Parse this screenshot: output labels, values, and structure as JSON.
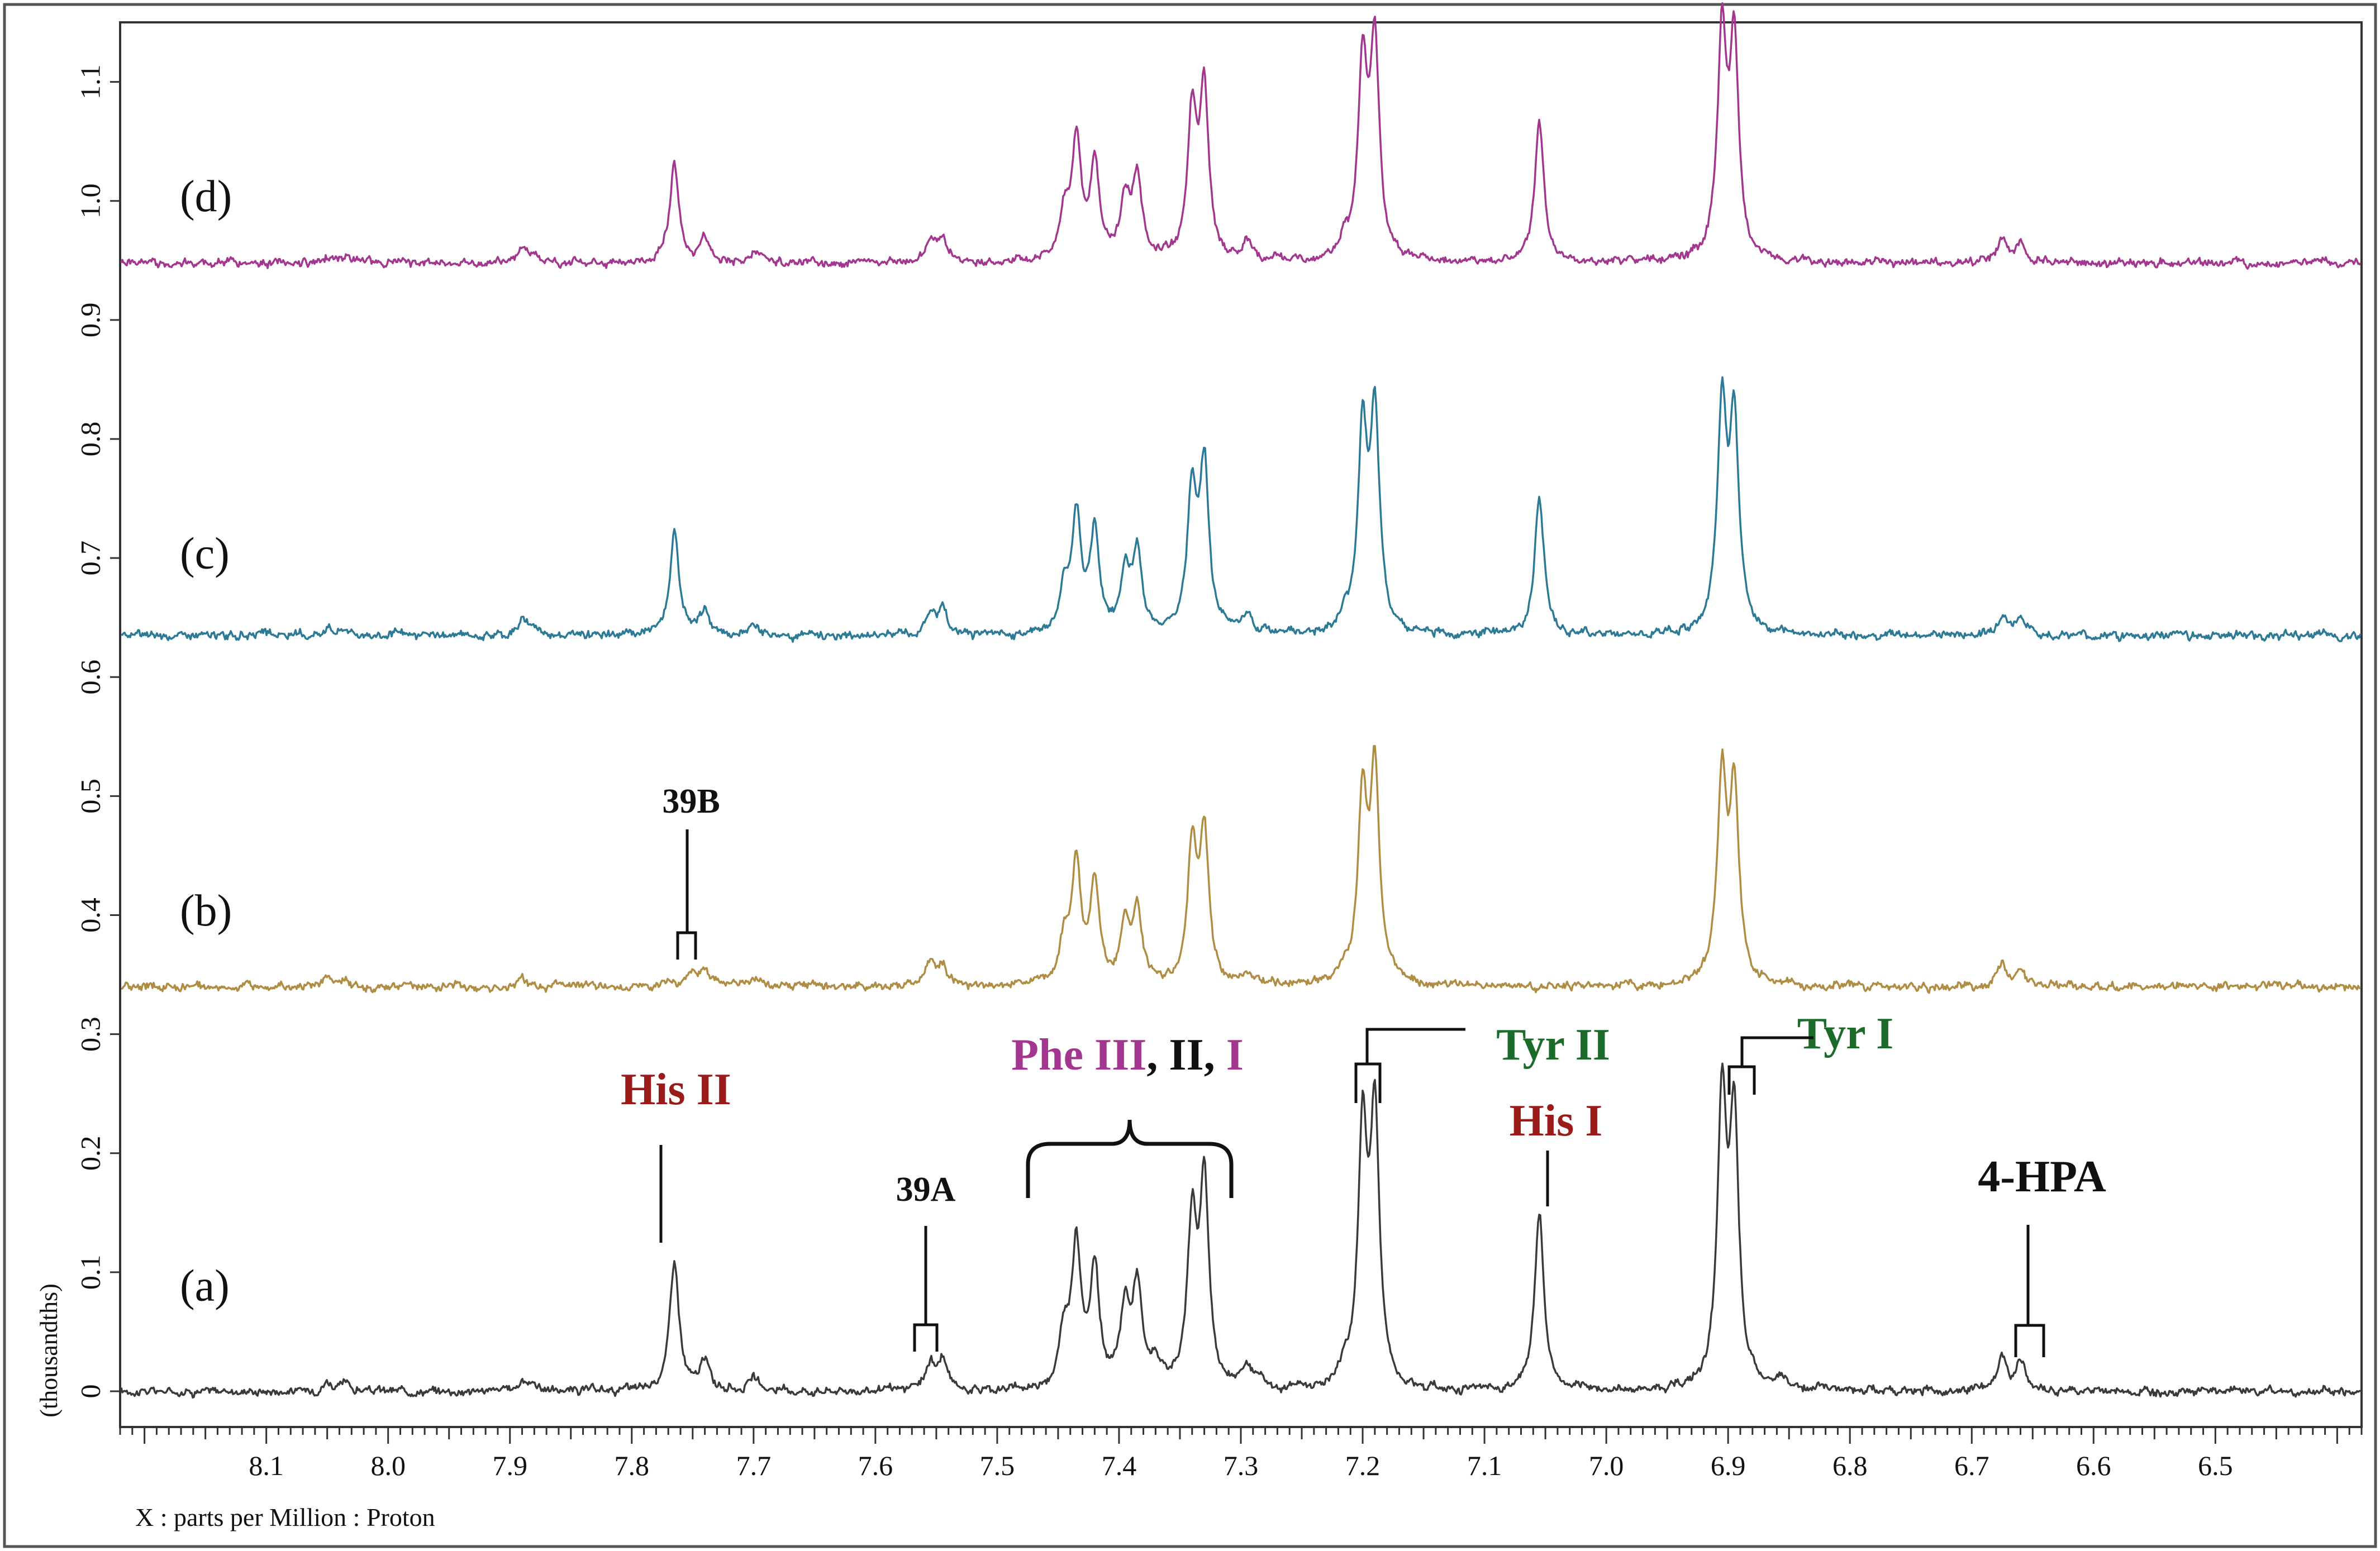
{
  "chart_data": {
    "type": "line",
    "title": "",
    "xlabel": "X : parts per Million : Proton",
    "ylabel": "(thousandths)",
    "xlim": [
      8.22,
      6.38
    ],
    "ylim": [
      -0.03,
      1.15
    ],
    "x_ticks": [
      8.1,
      8.0,
      7.9,
      7.8,
      7.7,
      7.6,
      7.5,
      7.4,
      7.3,
      7.2,
      7.1,
      7.0,
      6.9,
      6.8,
      6.7,
      6.6,
      6.5
    ],
    "x_tick_labels": [
      "8.1",
      "8.0",
      "7.9",
      "7.8",
      "7.7",
      "7.6",
      "7.5",
      "7.4",
      "7.3",
      "7.2",
      "7.1",
      "7.0",
      "6.9",
      "6.8",
      "6.7",
      "6.6",
      "6.5"
    ],
    "y_ticks": [
      0,
      0.1,
      0.2,
      0.3,
      0.4,
      0.5,
      0.6,
      0.7,
      0.8,
      0.9,
      1.0,
      1.1
    ],
    "y_tick_labels": [
      "0",
      "0.1",
      "0.2",
      "0.3",
      "0.4",
      "0.5",
      "0.6",
      "0.7",
      "0.8",
      "0.9",
      "1.0",
      "1.1"
    ],
    "series": [
      {
        "name": "(a)",
        "label": "(a)",
        "color": "#3a3a3a",
        "baseline": 0.0,
        "label_y": 0.085,
        "peaks": [
          {
            "ppm": 8.05,
            "h": 0.008
          },
          {
            "ppm": 8.035,
            "h": 0.006
          },
          {
            "ppm": 7.89,
            "h": 0.008
          },
          {
            "ppm": 7.88,
            "h": 0.006
          },
          {
            "ppm": 7.765,
            "h": 0.11
          },
          {
            "ppm": 7.74,
            "h": 0.025
          },
          {
            "ppm": 7.7,
            "h": 0.01
          },
          {
            "ppm": 7.555,
            "h": 0.022
          },
          {
            "ppm": 7.545,
            "h": 0.025
          },
          {
            "ppm": 7.445,
            "h": 0.045
          },
          {
            "ppm": 7.435,
            "h": 0.12
          },
          {
            "ppm": 7.42,
            "h": 0.1
          },
          {
            "ppm": 7.395,
            "h": 0.065
          },
          {
            "ppm": 7.385,
            "h": 0.085
          },
          {
            "ppm": 7.37,
            "h": 0.02
          },
          {
            "ppm": 7.34,
            "h": 0.135
          },
          {
            "ppm": 7.33,
            "h": 0.17
          },
          {
            "ppm": 7.295,
            "h": 0.018
          },
          {
            "ppm": 7.285,
            "h": 0.01
          },
          {
            "ppm": 7.215,
            "h": 0.015
          },
          {
            "ppm": 7.2,
            "h": 0.21
          },
          {
            "ppm": 7.19,
            "h": 0.225
          },
          {
            "ppm": 7.055,
            "h": 0.15
          },
          {
            "ppm": 6.905,
            "h": 0.235
          },
          {
            "ppm": 6.895,
            "h": 0.22
          },
          {
            "ppm": 6.855,
            "h": 0.008
          },
          {
            "ppm": 6.825,
            "h": 0.006
          },
          {
            "ppm": 6.675,
            "h": 0.028
          },
          {
            "ppm": 6.66,
            "h": 0.025
          }
        ]
      },
      {
        "name": "(b)",
        "label": "(b)",
        "color": "#b08d44",
        "baseline": 0.34,
        "label_y": 0.4,
        "peaks": [
          {
            "ppm": 8.05,
            "h": 0.007
          },
          {
            "ppm": 8.035,
            "h": 0.005
          },
          {
            "ppm": 7.89,
            "h": 0.006
          },
          {
            "ppm": 7.75,
            "h": 0.012
          },
          {
            "ppm": 7.74,
            "h": 0.015
          },
          {
            "ppm": 7.7,
            "h": 0.006
          },
          {
            "ppm": 7.555,
            "h": 0.018
          },
          {
            "ppm": 7.545,
            "h": 0.016
          },
          {
            "ppm": 7.445,
            "h": 0.035
          },
          {
            "ppm": 7.435,
            "h": 0.1
          },
          {
            "ppm": 7.42,
            "h": 0.085
          },
          {
            "ppm": 7.395,
            "h": 0.045
          },
          {
            "ppm": 7.385,
            "h": 0.062
          },
          {
            "ppm": 7.34,
            "h": 0.11
          },
          {
            "ppm": 7.33,
            "h": 0.125
          },
          {
            "ppm": 7.295,
            "h": 0.01
          },
          {
            "ppm": 7.215,
            "h": 0.012
          },
          {
            "ppm": 7.2,
            "h": 0.155
          },
          {
            "ppm": 7.19,
            "h": 0.175
          },
          {
            "ppm": 6.905,
            "h": 0.17
          },
          {
            "ppm": 6.895,
            "h": 0.16
          },
          {
            "ppm": 6.675,
            "h": 0.018
          },
          {
            "ppm": 6.66,
            "h": 0.015
          }
        ]
      },
      {
        "name": "(c)",
        "label": "(c)",
        "color": "#2d7a96",
        "baseline": 0.635,
        "label_y": 0.7,
        "peaks": [
          {
            "ppm": 8.05,
            "h": 0.008
          },
          {
            "ppm": 8.035,
            "h": 0.006
          },
          {
            "ppm": 7.89,
            "h": 0.012
          },
          {
            "ppm": 7.88,
            "h": 0.008
          },
          {
            "ppm": 7.765,
            "h": 0.085
          },
          {
            "ppm": 7.74,
            "h": 0.02
          },
          {
            "ppm": 7.7,
            "h": 0.008
          },
          {
            "ppm": 7.555,
            "h": 0.018
          },
          {
            "ppm": 7.545,
            "h": 0.02
          },
          {
            "ppm": 7.445,
            "h": 0.035
          },
          {
            "ppm": 7.435,
            "h": 0.098
          },
          {
            "ppm": 7.42,
            "h": 0.082
          },
          {
            "ppm": 7.395,
            "h": 0.05
          },
          {
            "ppm": 7.385,
            "h": 0.068
          },
          {
            "ppm": 7.34,
            "h": 0.117
          },
          {
            "ppm": 7.33,
            "h": 0.138
          },
          {
            "ppm": 7.295,
            "h": 0.015
          },
          {
            "ppm": 7.215,
            "h": 0.012
          },
          {
            "ppm": 7.2,
            "h": 0.165
          },
          {
            "ppm": 7.19,
            "h": 0.18
          },
          {
            "ppm": 7.055,
            "h": 0.115
          },
          {
            "ppm": 6.905,
            "h": 0.185
          },
          {
            "ppm": 6.895,
            "h": 0.175
          },
          {
            "ppm": 6.675,
            "h": 0.018
          },
          {
            "ppm": 6.66,
            "h": 0.016
          }
        ]
      },
      {
        "name": "(d)",
        "label": "(d)",
        "color": "#a3378f",
        "baseline": 0.948,
        "label_y": 1.0,
        "peaks": [
          {
            "ppm": 8.05,
            "h": 0.007
          },
          {
            "ppm": 8.035,
            "h": 0.005
          },
          {
            "ppm": 7.89,
            "h": 0.01
          },
          {
            "ppm": 7.88,
            "h": 0.007
          },
          {
            "ppm": 7.765,
            "h": 0.085
          },
          {
            "ppm": 7.74,
            "h": 0.02
          },
          {
            "ppm": 7.7,
            "h": 0.007
          },
          {
            "ppm": 7.555,
            "h": 0.018
          },
          {
            "ppm": 7.545,
            "h": 0.02
          },
          {
            "ppm": 7.445,
            "h": 0.036
          },
          {
            "ppm": 7.435,
            "h": 0.1
          },
          {
            "ppm": 7.42,
            "h": 0.083
          },
          {
            "ppm": 7.395,
            "h": 0.05
          },
          {
            "ppm": 7.385,
            "h": 0.068
          },
          {
            "ppm": 7.34,
            "h": 0.118
          },
          {
            "ppm": 7.33,
            "h": 0.137
          },
          {
            "ppm": 7.295,
            "h": 0.015
          },
          {
            "ppm": 7.215,
            "h": 0.012
          },
          {
            "ppm": 7.2,
            "h": 0.162
          },
          {
            "ppm": 7.19,
            "h": 0.178
          },
          {
            "ppm": 7.055,
            "h": 0.115
          },
          {
            "ppm": 6.905,
            "h": 0.185
          },
          {
            "ppm": 6.895,
            "h": 0.175
          },
          {
            "ppm": 6.675,
            "h": 0.018
          },
          {
            "ppm": 6.66,
            "h": 0.016
          }
        ]
      }
    ],
    "annotations": [
      {
        "id": "his-ii",
        "parts": [
          {
            "text": "His II",
            "color": "#9b1b1b"
          }
        ]
      },
      {
        "id": "his-i",
        "parts": [
          {
            "text": "His I",
            "color": "#9b1b1b"
          }
        ]
      },
      {
        "id": "tyr-ii",
        "parts": [
          {
            "text": "Tyr II",
            "color": "#1d6b2a"
          }
        ]
      },
      {
        "id": "tyr-i",
        "parts": [
          {
            "text": "Tyr I",
            "color": "#1d6b2a"
          }
        ]
      },
      {
        "id": "four-hpa",
        "parts": [
          {
            "text": "4-HPA",
            "color": "#111111"
          }
        ]
      },
      {
        "id": "phe",
        "parts": [
          {
            "text": "Phe III",
            "color": "#a3378f"
          },
          {
            "text": ", II, ",
            "color": "#111111"
          },
          {
            "text": "I",
            "color": "#a3378f"
          }
        ]
      },
      {
        "id": "39a",
        "parts": [
          {
            "text": "39A",
            "color": "#111111"
          }
        ]
      },
      {
        "id": "39b",
        "parts": [
          {
            "text": "39B",
            "color": "#111111"
          }
        ]
      }
    ]
  }
}
